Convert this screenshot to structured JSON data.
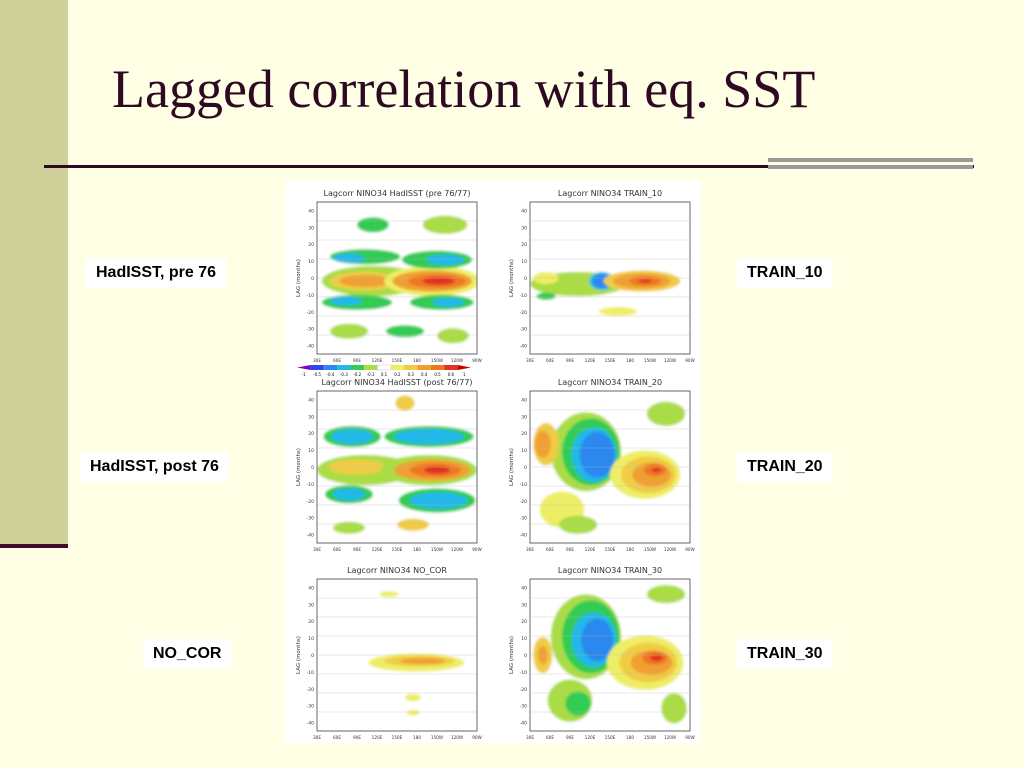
{
  "slide": {
    "title": "Lagged correlation with eq. SST",
    "labels": {
      "hadisst_pre": "HadISST, pre 76",
      "hadisst_post": "HadISST, post 76",
      "no_cor": "NO_COR",
      "train_10": "TRAIN_10",
      "train_20": "TRAIN_20",
      "train_30": "TRAIN_30"
    }
  },
  "panels": [
    {
      "id": "p1",
      "title": "Lagcorr NINO34 HadISST (pre 76/77)"
    },
    {
      "id": "p2",
      "title": "Lagcorr NINO34 TRAIN_10"
    },
    {
      "id": "p3",
      "title": "Lagcorr NINO34 HadISST (post 76/77)"
    },
    {
      "id": "p4",
      "title": "Lagcorr NINO34 TRAIN_20"
    },
    {
      "id": "p5",
      "title": "Lagcorr NINO34 NO_COR"
    },
    {
      "id": "p6",
      "title": "Lagcorr NINO34 TRAIN_30"
    }
  ],
  "axes": {
    "ylabel": "LAG (months)",
    "yticks": [
      "40",
      "30",
      "20",
      "10",
      "0",
      "-10",
      "-20",
      "-30",
      "-40"
    ],
    "xticks": [
      "30E",
      "60E",
      "90E",
      "120E",
      "150E",
      "180",
      "150W",
      "120W",
      "90W"
    ]
  },
  "colorbar": {
    "ticks": [
      "-1",
      "-0.5",
      "-0.4",
      "-0.3",
      "-0.2",
      "-0.1",
      "0.1",
      "0.2",
      "0.3",
      "0.4",
      "0.5",
      "0.6",
      "1"
    ],
    "colors": [
      "#8800cc",
      "#3344ee",
      "#2a88ee",
      "#22b8e8",
      "#33cc55",
      "#aadd44",
      "#ffffff",
      "#eeee66",
      "#f0cc44",
      "#f0a030",
      "#ee7722",
      "#e03322",
      "#cc0000"
    ]
  }
}
